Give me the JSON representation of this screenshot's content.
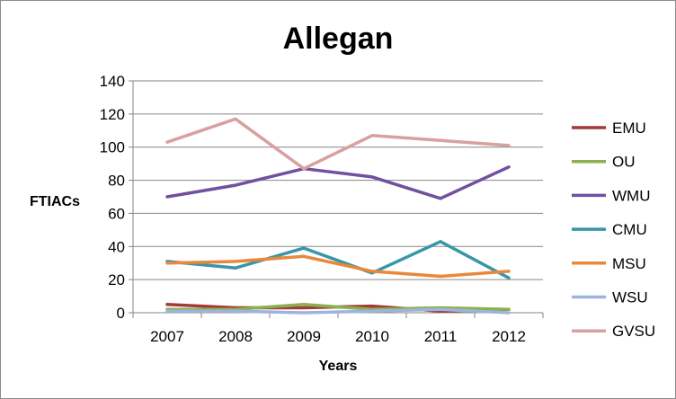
{
  "chart_data": {
    "type": "line",
    "title": "Allegan",
    "xlabel": "Years",
    "ylabel": "FTIACs",
    "categories": [
      "2007",
      "2008",
      "2009",
      "2010",
      "2011",
      "2012"
    ],
    "ylim": [
      0,
      140
    ],
    "yticks": [
      0,
      20,
      40,
      60,
      80,
      100,
      120,
      140
    ],
    "grid": "horizontal",
    "legend": "right",
    "series": [
      {
        "name": "EMU",
        "color": "#a33a38",
        "values": [
          5,
          3,
          3,
          4,
          1,
          2
        ]
      },
      {
        "name": "OU",
        "color": "#8cb04f",
        "values": [
          2,
          2,
          5,
          2,
          3,
          2
        ]
      },
      {
        "name": "WMU",
        "color": "#7150a0",
        "values": [
          70,
          77,
          87,
          82,
          69,
          88
        ]
      },
      {
        "name": "CMU",
        "color": "#3996a8",
        "values": [
          31,
          27,
          39,
          24,
          43,
          21
        ]
      },
      {
        "name": "MSU",
        "color": "#e9883b",
        "values": [
          30,
          31,
          34,
          25,
          22,
          25
        ]
      },
      {
        "name": "WSU",
        "color": "#9db4de",
        "values": [
          1,
          1,
          0,
          1,
          2,
          0
        ]
      },
      {
        "name": "GVSU",
        "color": "#d9a0a0",
        "values": [
          103,
          117,
          87,
          107,
          104,
          101
        ]
      }
    ]
  }
}
